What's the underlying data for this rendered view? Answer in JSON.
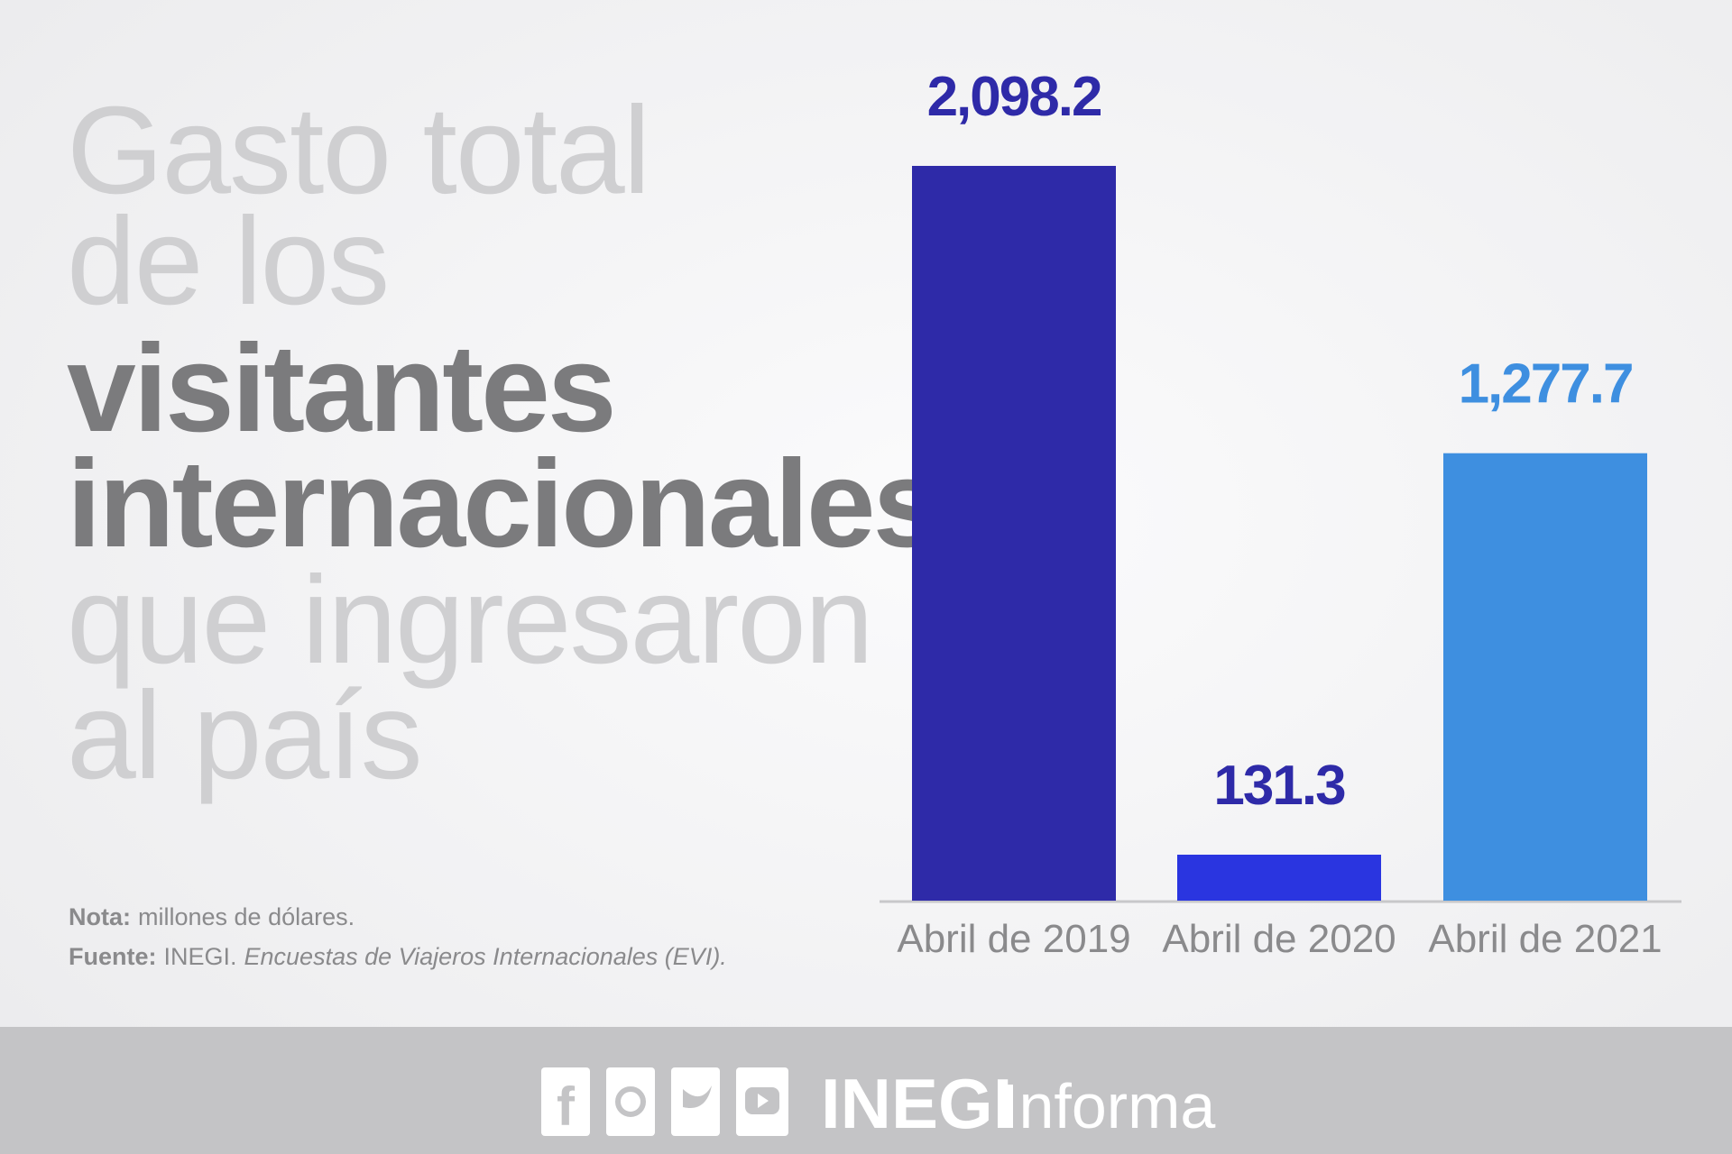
{
  "chart_data": {
    "type": "bar",
    "title_lines": [
      {
        "text": "Gasto total",
        "bold": false
      },
      {
        "text": "de los",
        "bold": false
      },
      {
        "text": "visitantes",
        "bold": true
      },
      {
        "text": "internacionales",
        "bold": true
      },
      {
        "text": "que ingresaron",
        "bold": false
      },
      {
        "text": "al país",
        "bold": false
      }
    ],
    "categories": [
      "Abril de 2019",
      "Abril de 2020",
      "Abril de 2021"
    ],
    "values": [
      2098.2,
      131.3,
      1277.7
    ],
    "value_labels": [
      "2,098.2",
      "131.3",
      "1,277.7"
    ],
    "colors": [
      "#2e2aa8",
      "#2a35e0",
      "#3e8fe0"
    ],
    "label_colors": [
      "#2e2aa8",
      "#2e2aa8",
      "#3e8fe0"
    ],
    "notes": [
      {
        "label": "Nota:",
        "text": "millones de dólares."
      },
      {
        "label": "Fuente:",
        "text": "INEGI.",
        "italic": "Encuestas de Viajeros Internacionales (EVI)."
      }
    ],
    "footer": {
      "brand": "INEGI",
      "suffix": "Informa"
    }
  }
}
